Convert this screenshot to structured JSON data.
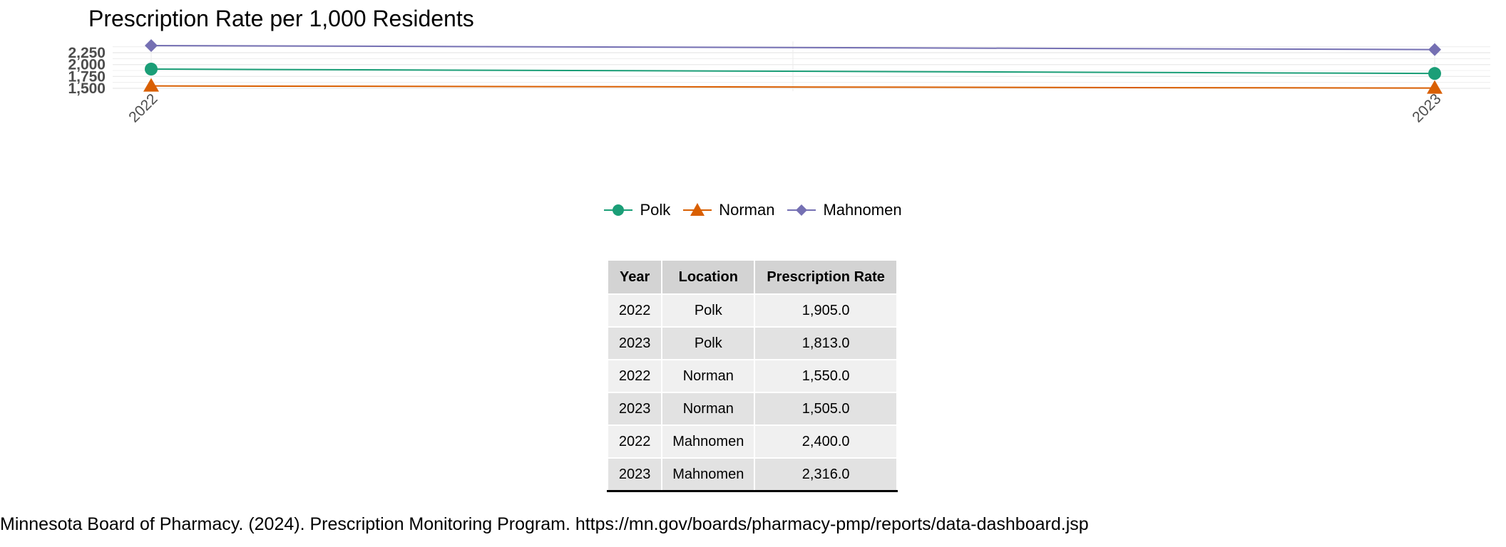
{
  "chart_data": {
    "type": "line",
    "title": "Prescription Rate per 1,000 Residents",
    "xlabel": "",
    "ylabel": "",
    "x": [
      "2022",
      "2023"
    ],
    "ylim": [
      1500,
      2400
    ],
    "y_ticks": [
      "1,500",
      "1,750",
      "2,000",
      "2,250"
    ],
    "grid": true,
    "legend_position": "bottom",
    "series": [
      {
        "name": "Polk",
        "values": [
          1905,
          1813
        ],
        "color": "#1b9e77",
        "marker": "circle"
      },
      {
        "name": "Norman",
        "values": [
          1550,
          1505
        ],
        "color": "#d95f02",
        "marker": "triangle"
      },
      {
        "name": "Mahnomen",
        "values": [
          2400,
          2316
        ],
        "color": "#7570b3",
        "marker": "diamond"
      }
    ]
  },
  "legend": {
    "items": [
      {
        "label": "Polk",
        "color": "#1b9e77",
        "icon": "circle-marker-icon"
      },
      {
        "label": "Norman",
        "color": "#d95f02",
        "icon": "triangle-marker-icon"
      },
      {
        "label": "Mahnomen",
        "color": "#7570b3",
        "icon": "diamond-marker-icon"
      }
    ]
  },
  "table": {
    "headers": [
      "Year",
      "Location",
      "Prescription Rate"
    ],
    "rows": [
      [
        "2022",
        "Polk",
        "1,905.0"
      ],
      [
        "2023",
        "Polk",
        "1,813.0"
      ],
      [
        "2022",
        "Norman",
        "1,550.0"
      ],
      [
        "2023",
        "Norman",
        "1,505.0"
      ],
      [
        "2022",
        "Mahnomen",
        "2,400.0"
      ],
      [
        "2023",
        "Mahnomen",
        "2,316.0"
      ]
    ]
  },
  "source": "Minnesota Board of Pharmacy. (2024). Prescription Monitoring Program. https://mn.gov/boards/pharmacy-pmp/reports/data-dashboard.jsp"
}
